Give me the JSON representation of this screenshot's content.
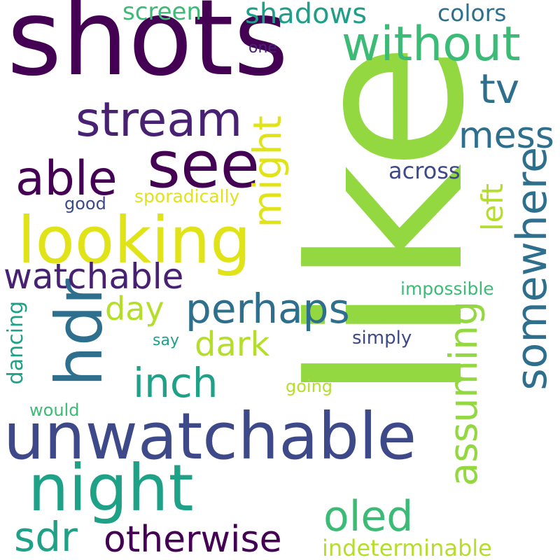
{
  "words": [
    {
      "key": "like",
      "text": "like",
      "color": "#93d741"
    },
    {
      "key": "shots",
      "text": "shots",
      "color": "#440154"
    },
    {
      "key": "unwatchable",
      "text": "unwatchable",
      "color": "#3e4989"
    },
    {
      "key": "looking",
      "text": "looking",
      "color": "#dfe318"
    },
    {
      "key": "night",
      "text": "night",
      "color": "#1fa187"
    },
    {
      "key": "see",
      "text": "see",
      "color": "#440154"
    },
    {
      "key": "hdr",
      "text": "hdr",
      "color": "#2e6f8e"
    },
    {
      "key": "without",
      "text": "without",
      "color": "#3bbb75"
    },
    {
      "key": "somewhere",
      "text": "somewhere",
      "color": "#2e6f8e"
    },
    {
      "key": "stream",
      "text": "stream",
      "color": "#482173"
    },
    {
      "key": "able",
      "text": "able",
      "color": "#440154"
    },
    {
      "key": "assuming",
      "text": "assuming",
      "color": "#93d741"
    },
    {
      "key": "watchable",
      "text": "watchable",
      "color": "#482173"
    },
    {
      "key": "perhaps",
      "text": "perhaps",
      "color": "#2e6f8e"
    },
    {
      "key": "inch",
      "text": "inch",
      "color": "#1fa187"
    },
    {
      "key": "otherwise",
      "text": "otherwise",
      "color": "#440154"
    },
    {
      "key": "sdr",
      "text": "sdr",
      "color": "#1fa187"
    },
    {
      "key": "oled",
      "text": "oled",
      "color": "#3bbb75"
    },
    {
      "key": "might",
      "text": "might",
      "color": "#dfe318"
    },
    {
      "key": "tv",
      "text": "tv",
      "color": "#2e6f8e"
    },
    {
      "key": "mess",
      "text": "mess",
      "color": "#2e6f8e"
    },
    {
      "key": "dark",
      "text": "dark",
      "color": "#b5de2b"
    },
    {
      "key": "day",
      "text": "day",
      "color": "#b5de2b"
    },
    {
      "key": "shadows",
      "text": "shadows",
      "color": "#1f9e89"
    },
    {
      "key": "left",
      "text": "left",
      "color": "#b5de2b"
    },
    {
      "key": "indeterminable",
      "text": "indeterminable",
      "color": "#b5de2b"
    },
    {
      "key": "screen",
      "text": "screen",
      "color": "#3bbb75"
    },
    {
      "key": "colors",
      "text": "colors",
      "color": "#2e6f8e"
    },
    {
      "key": "across",
      "text": "across",
      "color": "#3e4989"
    },
    {
      "key": "dancing",
      "text": "dancing",
      "color": "#1fa187"
    },
    {
      "key": "impossible",
      "text": "impossible",
      "color": "#3bbb75"
    },
    {
      "key": "sporadically",
      "text": "sporadically",
      "color": "#dfe318"
    },
    {
      "key": "simply",
      "text": "simply",
      "color": "#3e4989"
    },
    {
      "key": "good",
      "text": "good",
      "color": "#3e4989"
    },
    {
      "key": "one",
      "text": "one",
      "color": "#482173"
    },
    {
      "key": "going",
      "text": "going",
      "color": "#b5de2b"
    },
    {
      "key": "would",
      "text": "would",
      "color": "#3bbb75"
    },
    {
      "key": "say",
      "text": "say",
      "color": "#1fa187"
    }
  ]
}
